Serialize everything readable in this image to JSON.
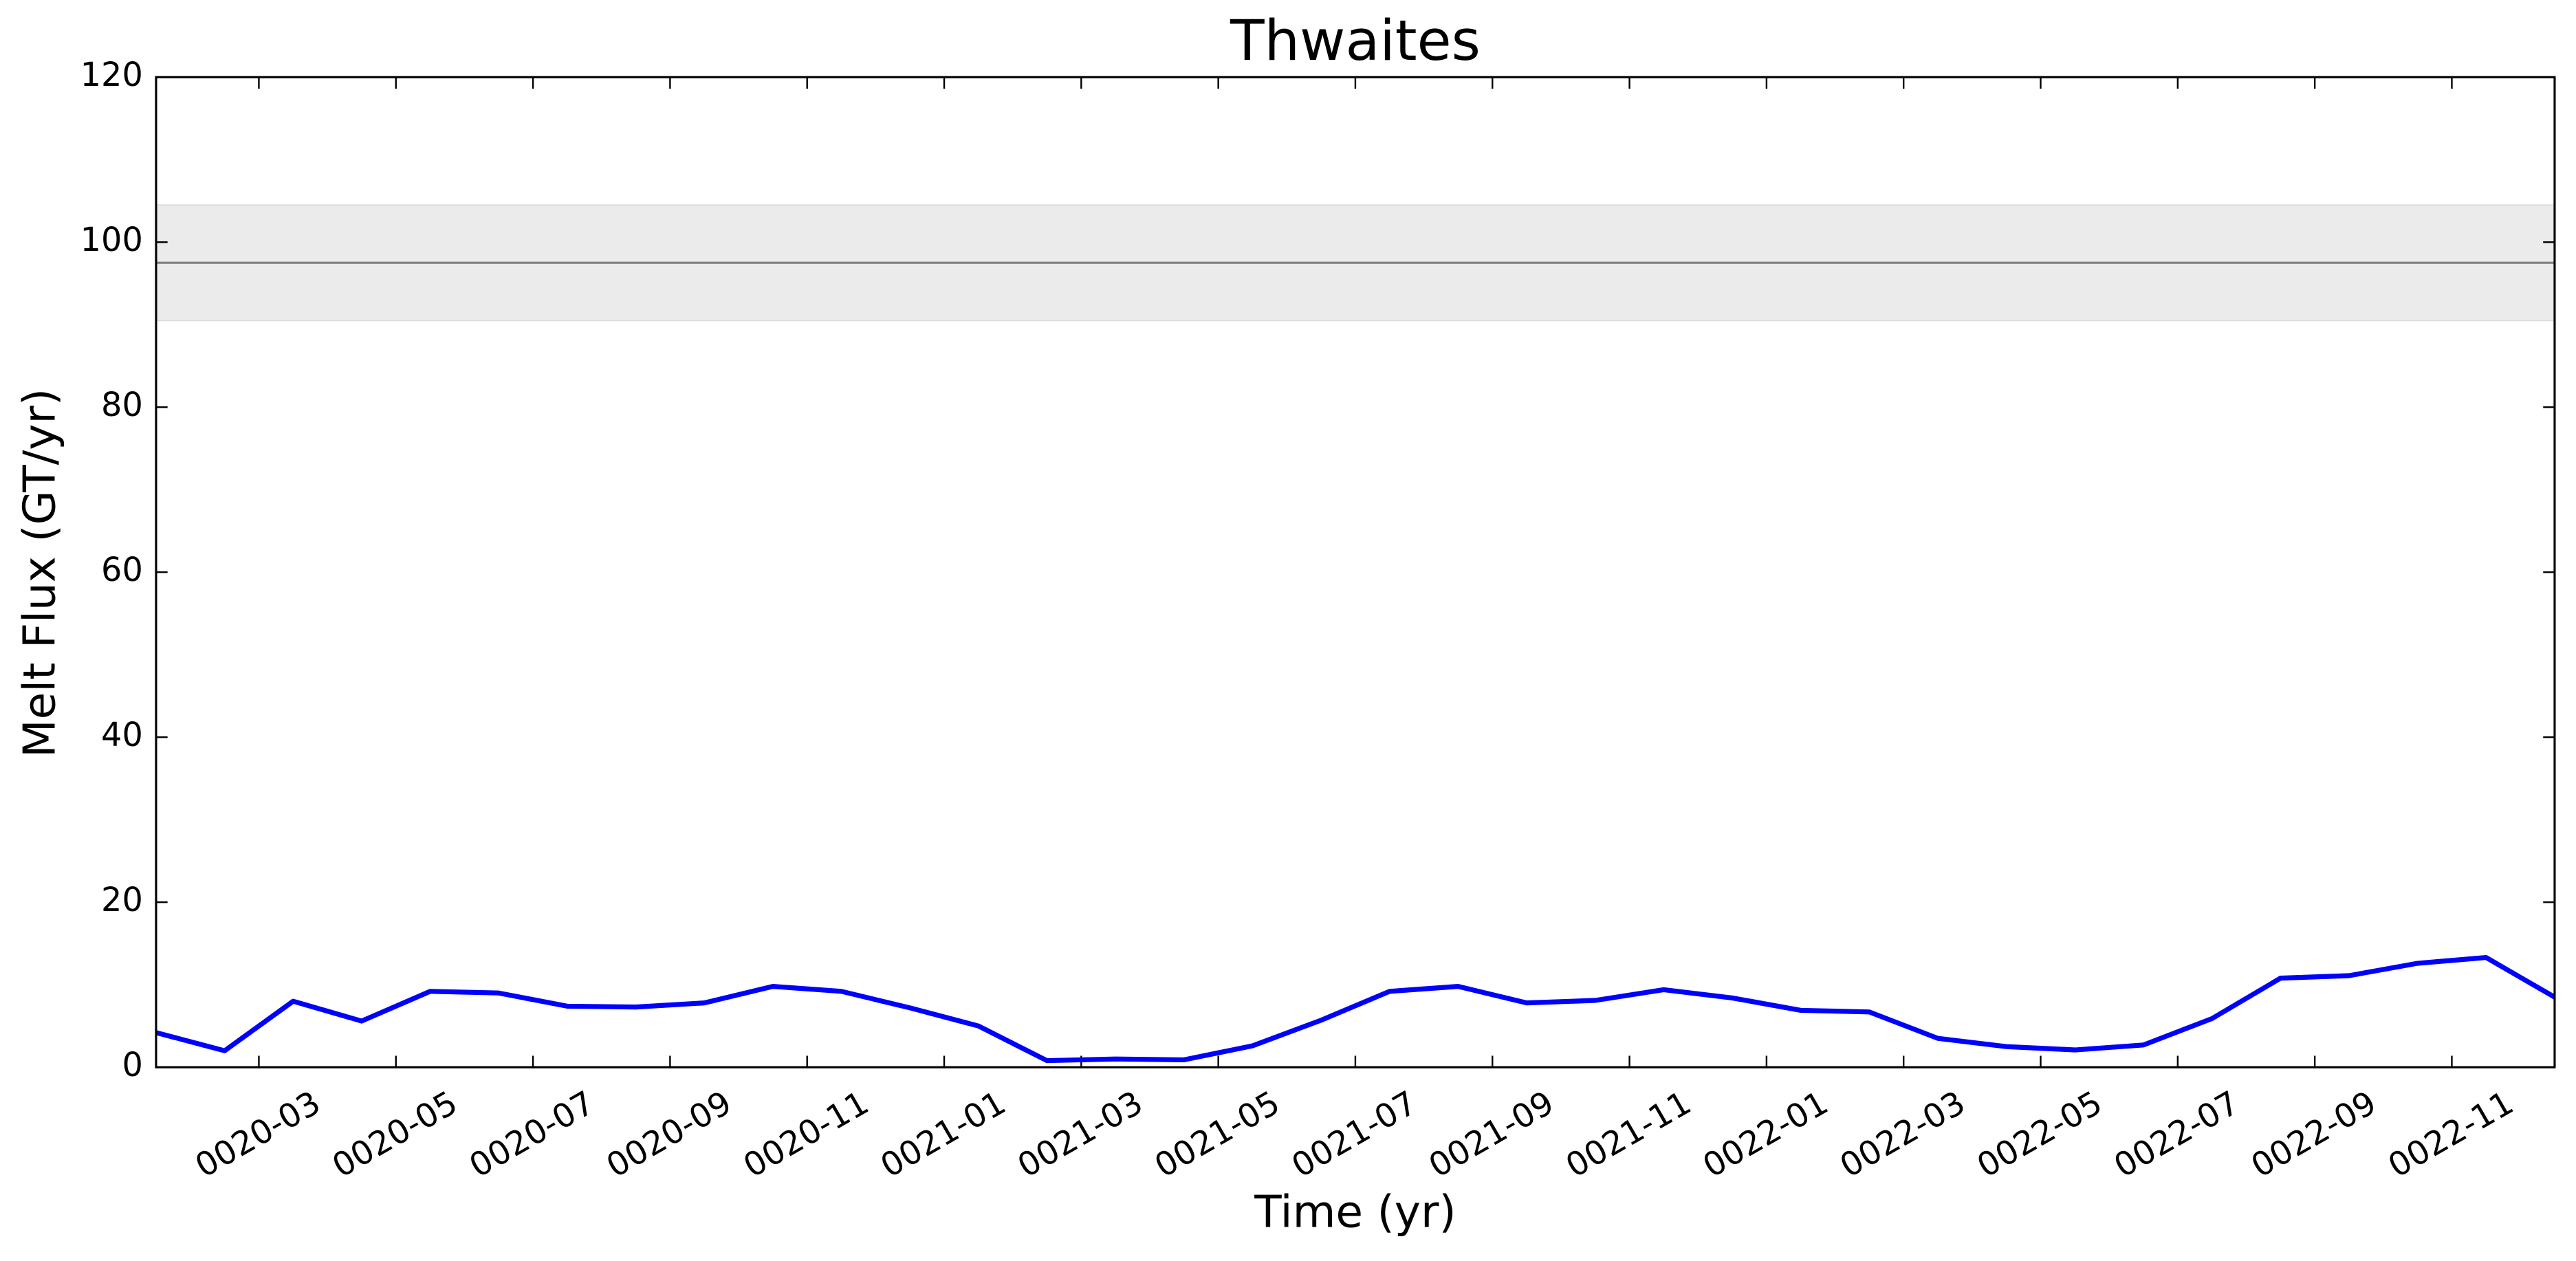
{
  "chart_data": {
    "type": "line",
    "title": "Thwaites",
    "x_label": "Time (yr)",
    "y_label": "Melt Flux (GT/yr)",
    "x": [
      "0020-01",
      "0020-02",
      "0020-03",
      "0020-04",
      "0020-05",
      "0020-06",
      "0020-07",
      "0020-08",
      "0020-09",
      "0020-10",
      "0020-11",
      "0020-12",
      "0021-01",
      "0021-02",
      "0021-03",
      "0021-04",
      "0021-05",
      "0021-06",
      "0021-07",
      "0021-08",
      "0021-09",
      "0021-10",
      "0021-11",
      "0021-12",
      "0022-01",
      "0022-02",
      "0022-03",
      "0022-04",
      "0022-05",
      "0022-06",
      "0022-07",
      "0022-08",
      "0022-09",
      "0022-10",
      "0022-11",
      "0022-12"
    ],
    "series": [
      {
        "name": "Thwaites",
        "color": "#0000ff",
        "values": [
          4.2,
          2.0,
          8.0,
          5.6,
          9.2,
          9.0,
          7.4,
          7.3,
          7.8,
          9.8,
          9.2,
          7.2,
          5.0,
          0.8,
          1.0,
          0.9,
          2.6,
          5.7,
          9.2,
          9.8,
          7.8,
          8.1,
          9.4,
          8.4,
          6.9,
          6.7,
          3.5,
          2.5,
          2.1,
          2.7,
          5.9,
          10.8,
          11.1,
          12.6,
          13.3,
          8.5
        ]
      }
    ],
    "reference_line": {
      "value": 97.5,
      "color": "#808080"
    },
    "reference_band": {
      "low": 90.5,
      "high": 104.5,
      "color": "#ebebeb"
    },
    "xlim": [
      "0020-01",
      "0022-12"
    ],
    "xticks": [
      "0020-03",
      "0020-05",
      "0020-07",
      "0020-09",
      "0020-11",
      "0021-01",
      "0021-03",
      "0021-05",
      "0021-07",
      "0021-09",
      "0021-11",
      "0022-01",
      "0022-03",
      "0022-05",
      "0022-07",
      "0022-09",
      "0022-11"
    ],
    "ylim": [
      0,
      120
    ],
    "yticks": [
      0,
      20,
      40,
      60,
      80,
      100,
      120
    ],
    "grid": false
  }
}
